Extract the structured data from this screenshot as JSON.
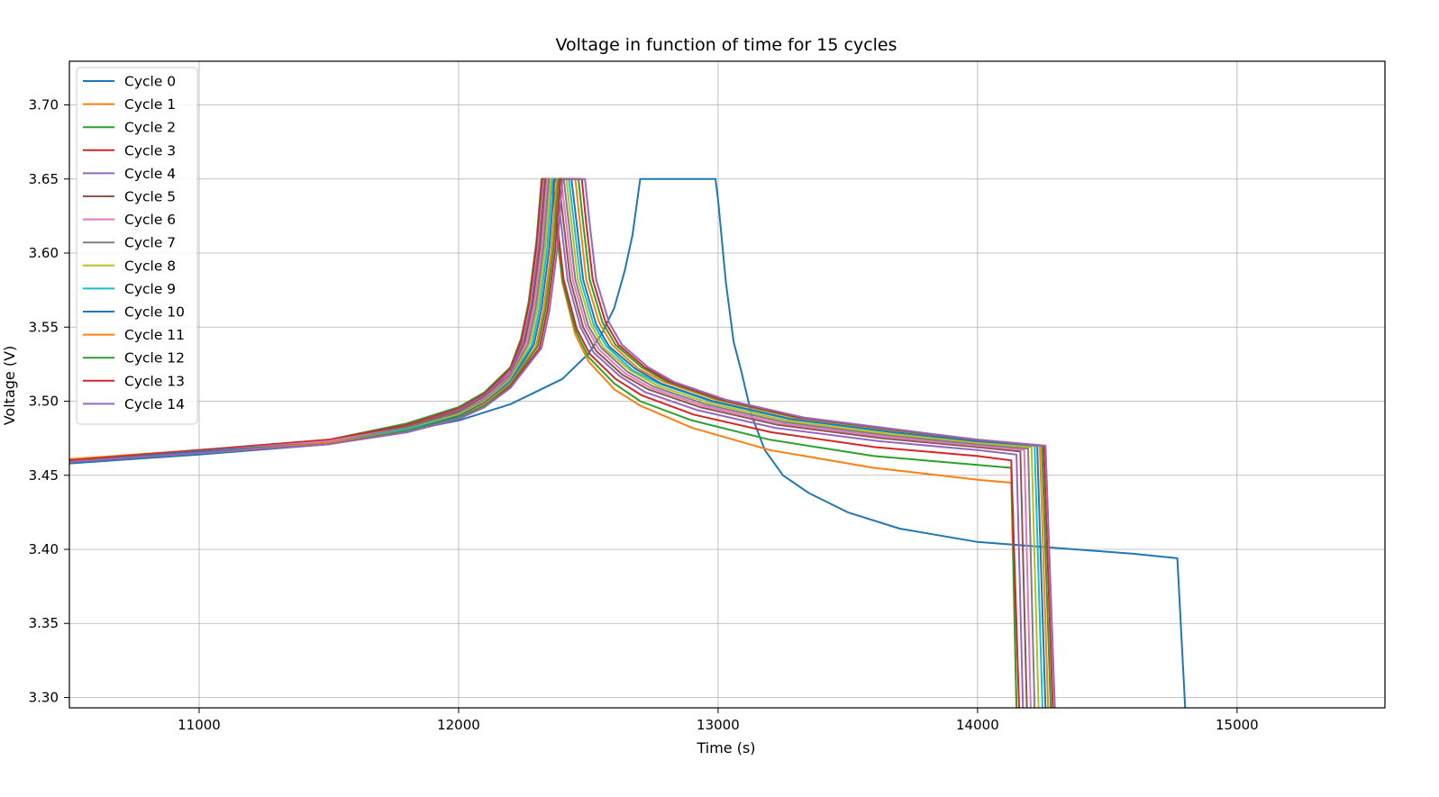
{
  "chart_data": {
    "type": "line",
    "title": "Voltage in function of time for 15 cycles",
    "xlabel": "Time (s)",
    "ylabel": "Voltage (V)",
    "xlim": [
      10500,
      15570
    ],
    "ylim": [
      3.293,
      3.7295
    ],
    "x_ticks": [
      11000,
      12000,
      13000,
      14000,
      15000
    ],
    "x_tick_labels": [
      "11000",
      "12000",
      "13000",
      "14000",
      "15000"
    ],
    "y_ticks": [
      3.3,
      3.35,
      3.4,
      3.45,
      3.5,
      3.55,
      3.6,
      3.65,
      3.7
    ],
    "y_tick_labels": [
      "3.30",
      "3.35",
      "3.40",
      "3.45",
      "3.50",
      "3.55",
      "3.60",
      "3.65",
      "3.70"
    ],
    "grid": true,
    "legend_position": "top-left",
    "series": [
      {
        "name": "Cycle 0",
        "color": "#1f77b4",
        "x": [
          10500,
          11000,
          11500,
          11800,
          12000,
          12200,
          12400,
          12500,
          12550,
          12600,
          12640,
          12670,
          12700,
          12720,
          12800,
          12900,
          12990,
          13000,
          13030,
          13060,
          13090,
          13130,
          13180,
          13250,
          13350,
          13500,
          13700,
          14000,
          14300,
          14600,
          14770,
          14800
        ],
        "y": [
          3.458,
          3.464,
          3.471,
          3.48,
          3.487,
          3.498,
          3.515,
          3.532,
          3.545,
          3.563,
          3.588,
          3.612,
          3.65,
          3.65,
          3.65,
          3.65,
          3.65,
          3.636,
          3.58,
          3.54,
          3.52,
          3.49,
          3.467,
          3.45,
          3.438,
          3.425,
          3.414,
          3.405,
          3.401,
          3.397,
          3.394,
          3.293
        ]
      },
      {
        "name": "Cycle 1",
        "color": "#ff7f0e",
        "x": [
          10500,
          11000,
          11500,
          11800,
          12000,
          12100,
          12200,
          12240,
          12270,
          12300,
          12320,
          12345,
          12360,
          12375,
          12400,
          12450,
          12500,
          12600,
          12700,
          12900,
          13200,
          13600,
          14000,
          14130,
          14150
        ],
        "y": [
          3.461,
          3.467,
          3.474,
          3.484,
          3.495,
          3.505,
          3.522,
          3.54,
          3.565,
          3.605,
          3.65,
          3.65,
          3.65,
          3.62,
          3.58,
          3.545,
          3.527,
          3.508,
          3.497,
          3.482,
          3.467,
          3.455,
          3.447,
          3.445,
          3.293
        ]
      },
      {
        "name": "Cycle 2",
        "color": "#2ca02c",
        "x": [
          10500,
          11000,
          11500,
          11800,
          12000,
          12100,
          12200,
          12240,
          12270,
          12300,
          12320,
          12345,
          12360,
          12375,
          12400,
          12450,
          12500,
          12600,
          12700,
          12900,
          13200,
          13600,
          14000,
          14130,
          14150
        ],
        "y": [
          3.46,
          3.467,
          3.474,
          3.485,
          3.496,
          3.506,
          3.523,
          3.542,
          3.567,
          3.608,
          3.65,
          3.65,
          3.65,
          3.62,
          3.582,
          3.548,
          3.53,
          3.512,
          3.5,
          3.487,
          3.474,
          3.463,
          3.457,
          3.455,
          3.293
        ]
      },
      {
        "name": "Cycle 3",
        "color": "#d62728",
        "x": [
          10500,
          11000,
          11500,
          11800,
          12000,
          12100,
          12200,
          12242,
          12272,
          12302,
          12322,
          12348,
          12363,
          12380,
          12405,
          12455,
          12505,
          12605,
          12705,
          12905,
          13205,
          13605,
          14000,
          14130,
          14160
        ],
        "y": [
          3.46,
          3.467,
          3.474,
          3.484,
          3.495,
          3.505,
          3.522,
          3.541,
          3.566,
          3.607,
          3.65,
          3.65,
          3.65,
          3.62,
          3.582,
          3.549,
          3.532,
          3.515,
          3.504,
          3.491,
          3.479,
          3.469,
          3.463,
          3.46,
          3.293
        ]
      },
      {
        "name": "Cycle 4",
        "color": "#9467bd",
        "x": [
          10500,
          11000,
          11500,
          11800,
          12000,
          12100,
          12200,
          12250,
          12280,
          12310,
          12330,
          12360,
          12375,
          12395,
          12420,
          12470,
          12520,
          12620,
          12720,
          12920,
          13220,
          13620,
          14000,
          14150,
          14175
        ],
        "y": [
          3.459,
          3.466,
          3.473,
          3.483,
          3.494,
          3.504,
          3.52,
          3.541,
          3.566,
          3.607,
          3.65,
          3.65,
          3.65,
          3.62,
          3.582,
          3.55,
          3.533,
          3.517,
          3.506,
          3.494,
          3.482,
          3.473,
          3.467,
          3.464,
          3.293
        ]
      },
      {
        "name": "Cycle 5",
        "color": "#8c564b",
        "x": [
          10500,
          11000,
          11500,
          11800,
          12000,
          12100,
          12200,
          12255,
          12285,
          12315,
          12335,
          12370,
          12385,
          12405,
          12430,
          12480,
          12530,
          12630,
          12730,
          12930,
          13230,
          13630,
          14000,
          14165,
          14190
        ],
        "y": [
          3.459,
          3.466,
          3.473,
          3.483,
          3.493,
          3.503,
          3.518,
          3.54,
          3.565,
          3.606,
          3.65,
          3.65,
          3.65,
          3.62,
          3.582,
          3.55,
          3.534,
          3.518,
          3.508,
          3.496,
          3.484,
          3.475,
          3.469,
          3.466,
          3.293
        ]
      },
      {
        "name": "Cycle 6",
        "color": "#e377c2",
        "x": [
          10500,
          11000,
          11500,
          11800,
          12000,
          12100,
          12200,
          12262,
          12292,
          12322,
          12342,
          12380,
          12395,
          12415,
          12440,
          12490,
          12540,
          12640,
          12740,
          12940,
          13240,
          13640,
          14000,
          14180,
          14205
        ],
        "y": [
          3.459,
          3.466,
          3.473,
          3.482,
          3.492,
          3.502,
          3.517,
          3.54,
          3.565,
          3.606,
          3.65,
          3.65,
          3.65,
          3.62,
          3.582,
          3.551,
          3.535,
          3.519,
          3.509,
          3.497,
          3.485,
          3.476,
          3.47,
          3.467,
          3.293
        ]
      },
      {
        "name": "Cycle 7",
        "color": "#7f7f7f",
        "x": [
          10500,
          11000,
          11500,
          11800,
          12000,
          12100,
          12200,
          12268,
          12298,
          12328,
          12348,
          12390,
          12405,
          12425,
          12450,
          12500,
          12550,
          12650,
          12750,
          12950,
          13250,
          13650,
          14000,
          14195,
          14220
        ],
        "y": [
          3.459,
          3.466,
          3.472,
          3.482,
          3.492,
          3.501,
          3.516,
          3.539,
          3.564,
          3.605,
          3.65,
          3.65,
          3.65,
          3.62,
          3.582,
          3.551,
          3.536,
          3.52,
          3.51,
          3.498,
          3.486,
          3.477,
          3.471,
          3.468,
          3.293
        ]
      },
      {
        "name": "Cycle 8",
        "color": "#bcbd22",
        "x": [
          10500,
          11000,
          11500,
          11800,
          12000,
          12100,
          12200,
          12275,
          12305,
          12335,
          12355,
          12400,
          12415,
          12435,
          12460,
          12510,
          12560,
          12660,
          12760,
          12960,
          13260,
          13660,
          14000,
          14208,
          14235
        ],
        "y": [
          3.459,
          3.466,
          3.472,
          3.481,
          3.491,
          3.5,
          3.515,
          3.539,
          3.564,
          3.605,
          3.65,
          3.65,
          3.65,
          3.62,
          3.582,
          3.552,
          3.536,
          3.521,
          3.511,
          3.499,
          3.487,
          3.478,
          3.472,
          3.469,
          3.293
        ]
      },
      {
        "name": "Cycle 9",
        "color": "#17becf",
        "x": [
          10500,
          11000,
          11500,
          11800,
          12000,
          12100,
          12200,
          12282,
          12312,
          12342,
          12362,
          12410,
          12425,
          12445,
          12470,
          12520,
          12570,
          12670,
          12770,
          12970,
          13270,
          13670,
          14000,
          14220,
          14250
        ],
        "y": [
          3.459,
          3.466,
          3.472,
          3.481,
          3.49,
          3.499,
          3.514,
          3.538,
          3.563,
          3.604,
          3.65,
          3.65,
          3.65,
          3.62,
          3.582,
          3.552,
          3.537,
          3.521,
          3.512,
          3.5,
          3.488,
          3.479,
          3.473,
          3.47,
          3.293
        ]
      },
      {
        "name": "Cycle 10",
        "color": "#1f77b4",
        "x": [
          10500,
          11000,
          11500,
          11800,
          12000,
          12100,
          12200,
          12290,
          12320,
          12350,
          12370,
          12420,
          12435,
          12455,
          12480,
          12530,
          12580,
          12680,
          12780,
          12980,
          13280,
          13680,
          14000,
          14230,
          14262
        ],
        "y": [
          3.459,
          3.466,
          3.472,
          3.48,
          3.49,
          3.499,
          3.513,
          3.538,
          3.563,
          3.604,
          3.65,
          3.65,
          3.65,
          3.62,
          3.582,
          3.552,
          3.537,
          3.522,
          3.512,
          3.5,
          3.488,
          3.479,
          3.473,
          3.47,
          3.293
        ]
      },
      {
        "name": "Cycle 11",
        "color": "#ff7f0e",
        "x": [
          10500,
          11000,
          11500,
          11800,
          12000,
          12100,
          12200,
          12298,
          12328,
          12358,
          12378,
          12435,
          12450,
          12468,
          12492,
          12542,
          12592,
          12692,
          12792,
          12992,
          13292,
          13692,
          14000,
          14240,
          14272
        ],
        "y": [
          3.459,
          3.465,
          3.472,
          3.48,
          3.489,
          3.498,
          3.512,
          3.537,
          3.562,
          3.603,
          3.65,
          3.65,
          3.65,
          3.62,
          3.582,
          3.553,
          3.538,
          3.522,
          3.513,
          3.501,
          3.489,
          3.48,
          3.474,
          3.47,
          3.293
        ]
      },
      {
        "name": "Cycle 12",
        "color": "#2ca02c",
        "x": [
          10500,
          11000,
          11500,
          11800,
          12000,
          12100,
          12200,
          12305,
          12335,
          12365,
          12385,
          12450,
          12462,
          12480,
          12505,
          12555,
          12605,
          12705,
          12805,
          13005,
          13305,
          13705,
          14000,
          14248,
          14282
        ],
        "y": [
          3.459,
          3.465,
          3.471,
          3.48,
          3.489,
          3.497,
          3.511,
          3.537,
          3.562,
          3.603,
          3.65,
          3.65,
          3.65,
          3.62,
          3.582,
          3.553,
          3.538,
          3.523,
          3.513,
          3.501,
          3.489,
          3.48,
          3.474,
          3.47,
          3.293
        ]
      },
      {
        "name": "Cycle 13",
        "color": "#d62728",
        "x": [
          10500,
          11000,
          11500,
          11800,
          12000,
          12100,
          12200,
          12312,
          12342,
          12372,
          12392,
          12462,
          12475,
          12492,
          12517,
          12567,
          12617,
          12717,
          12817,
          13017,
          13317,
          13717,
          14000,
          14255,
          14290
        ],
        "y": [
          3.459,
          3.465,
          3.471,
          3.479,
          3.488,
          3.496,
          3.51,
          3.536,
          3.561,
          3.602,
          3.65,
          3.65,
          3.65,
          3.62,
          3.582,
          3.553,
          3.538,
          3.523,
          3.513,
          3.501,
          3.489,
          3.48,
          3.474,
          3.47,
          3.293
        ]
      },
      {
        "name": "Cycle 14",
        "color": "#9467bd",
        "x": [
          10500,
          11000,
          11500,
          11800,
          12000,
          12100,
          12200,
          12320,
          12350,
          12380,
          12400,
          12475,
          12487,
          12505,
          12530,
          12580,
          12630,
          12730,
          12830,
          13030,
          13330,
          13730,
          14000,
          14262,
          14298
        ],
        "y": [
          3.459,
          3.465,
          3.471,
          3.479,
          3.488,
          3.496,
          3.509,
          3.536,
          3.561,
          3.602,
          3.65,
          3.65,
          3.65,
          3.62,
          3.582,
          3.553,
          3.538,
          3.523,
          3.513,
          3.501,
          3.489,
          3.48,
          3.474,
          3.47,
          3.293
        ]
      }
    ]
  }
}
